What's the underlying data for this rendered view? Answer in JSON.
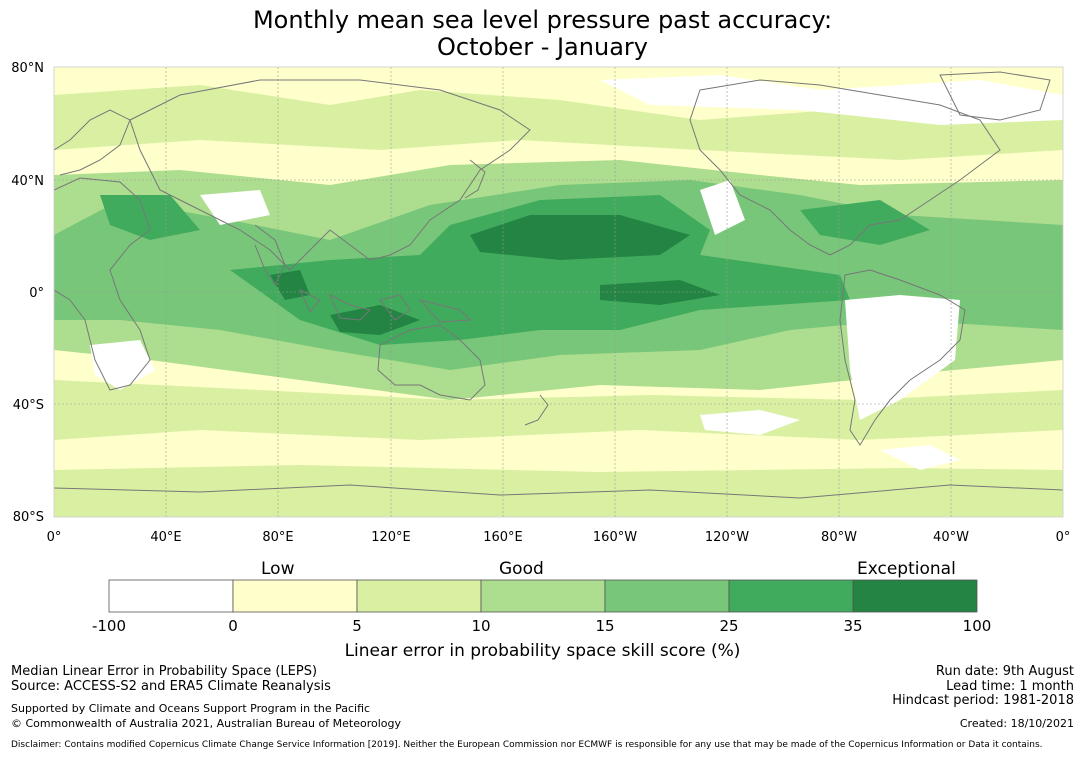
{
  "title": {
    "line1": "Monthly mean sea level pressure past accuracy:",
    "line2": "October - January"
  },
  "map": {
    "lat_labels": [
      "80°N",
      "40°N",
      "0°",
      "40°S",
      "80°S"
    ],
    "lon_labels": [
      "0°",
      "40°E",
      "80°E",
      "120°E",
      "160°E",
      "160°W",
      "120°W",
      "80°W",
      "40°W",
      "0°"
    ]
  },
  "legend": {
    "category_labels": [
      "Low",
      "Good",
      "Exceptional"
    ],
    "tick_labels": [
      "-100",
      "0",
      "5",
      "10",
      "15",
      "25",
      "35",
      "100"
    ],
    "bins": [
      {
        "range": "-100 to 0",
        "color": "#ffffff"
      },
      {
        "range": "0 to 5",
        "color": "#ffffcc"
      },
      {
        "range": "5 to 10",
        "color": "#d9f0a3"
      },
      {
        "range": "10 to 15",
        "color": "#addd8e"
      },
      {
        "range": "15 to 25",
        "color": "#78c679"
      },
      {
        "range": "25 to 35",
        "color": "#41ab5d"
      },
      {
        "range": "35 to 100",
        "color": "#238443"
      }
    ],
    "axis_title": "Linear error in probability space skill score (%)"
  },
  "footer": {
    "left_line1": "Median Linear Error in Probability Space (LEPS)",
    "left_line2": "Source: ACCESS-S2 and ERA5 Climate Reanalysis",
    "support_line1": "Supported by Climate and Oceans Support Program in the Pacific",
    "support_line2": "© Commonwealth of Australia 2021, Australian Bureau of Meteorology",
    "run_date": "Run date: 9th August",
    "lead_time": "Lead time: 1 month",
    "hindcast": "Hindcast period: 1981-2018",
    "created": "Created: 18/10/2021",
    "disclaimer": "Disclaimer: Contains modified Copernicus Climate Change Service Information [2019]. Neither the European Commission nor ECMWF is responsible for any use that may be made of the Copernicus Information or Data it contains."
  }
}
